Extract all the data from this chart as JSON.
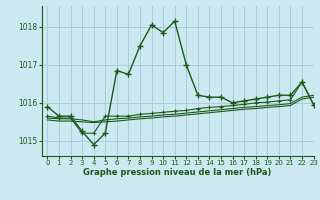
{
  "title": "Graphe pression niveau de la mer (hPa)",
  "bg_color": "#cce8f0",
  "grid_color": "#aaccdd",
  "line_color": "#1a5c1a",
  "xlim": [
    -0.5,
    23
  ],
  "ylim": [
    1014.6,
    1018.55
  ],
  "yticks": [
    1015,
    1016,
    1017,
    1018
  ],
  "xticks": [
    0,
    1,
    2,
    3,
    4,
    5,
    6,
    7,
    8,
    9,
    10,
    11,
    12,
    13,
    14,
    15,
    16,
    17,
    18,
    19,
    20,
    21,
    22,
    23
  ],
  "line1_x": [
    0,
    1,
    2,
    3,
    4,
    5,
    6,
    7,
    8,
    9,
    10,
    11,
    12,
    13,
    14,
    15,
    16,
    17,
    18,
    19,
    20,
    21,
    22,
    23
  ],
  "line1_y": [
    1015.9,
    1015.65,
    1015.65,
    1015.25,
    1014.9,
    1015.2,
    1016.85,
    1016.75,
    1017.5,
    1018.05,
    1017.85,
    1018.15,
    1017.0,
    1016.2,
    1016.15,
    1016.15,
    1016.0,
    1016.05,
    1016.1,
    1016.15,
    1016.2,
    1016.2,
    1016.55,
    1015.95
  ],
  "line2_x": [
    0,
    1,
    2,
    3,
    4,
    5,
    6,
    7,
    8,
    9,
    10,
    11,
    12,
    13,
    14,
    15,
    16,
    17,
    18,
    19,
    20,
    21,
    22,
    23
  ],
  "line2_y": [
    1015.65,
    1015.6,
    1015.6,
    1015.2,
    1015.2,
    1015.65,
    1015.65,
    1015.65,
    1015.7,
    1015.72,
    1015.75,
    1015.78,
    1015.8,
    1015.85,
    1015.88,
    1015.9,
    1015.93,
    1015.96,
    1016.0,
    1016.02,
    1016.05,
    1016.08,
    1016.55,
    1015.95
  ],
  "line3_x": [
    0,
    1,
    2,
    3,
    4,
    5,
    6,
    7,
    8,
    9,
    10,
    11,
    12,
    13,
    14,
    15,
    16,
    17,
    18,
    19,
    20,
    21,
    22,
    23
  ],
  "line3_y": [
    1015.6,
    1015.58,
    1015.58,
    1015.55,
    1015.5,
    1015.55,
    1015.58,
    1015.6,
    1015.63,
    1015.65,
    1015.68,
    1015.7,
    1015.73,
    1015.76,
    1015.79,
    1015.82,
    1015.85,
    1015.88,
    1015.9,
    1015.93,
    1015.95,
    1015.98,
    1016.15,
    1016.2
  ],
  "line4_x": [
    0,
    1,
    2,
    3,
    4,
    5,
    6,
    7,
    8,
    9,
    10,
    11,
    12,
    13,
    14,
    15,
    16,
    17,
    18,
    19,
    20,
    21,
    22,
    23
  ],
  "line4_y": [
    1015.55,
    1015.52,
    1015.52,
    1015.5,
    1015.48,
    1015.5,
    1015.52,
    1015.55,
    1015.58,
    1015.6,
    1015.63,
    1015.65,
    1015.68,
    1015.71,
    1015.74,
    1015.77,
    1015.8,
    1015.83,
    1015.85,
    1015.88,
    1015.9,
    1015.93,
    1016.1,
    1016.15
  ]
}
